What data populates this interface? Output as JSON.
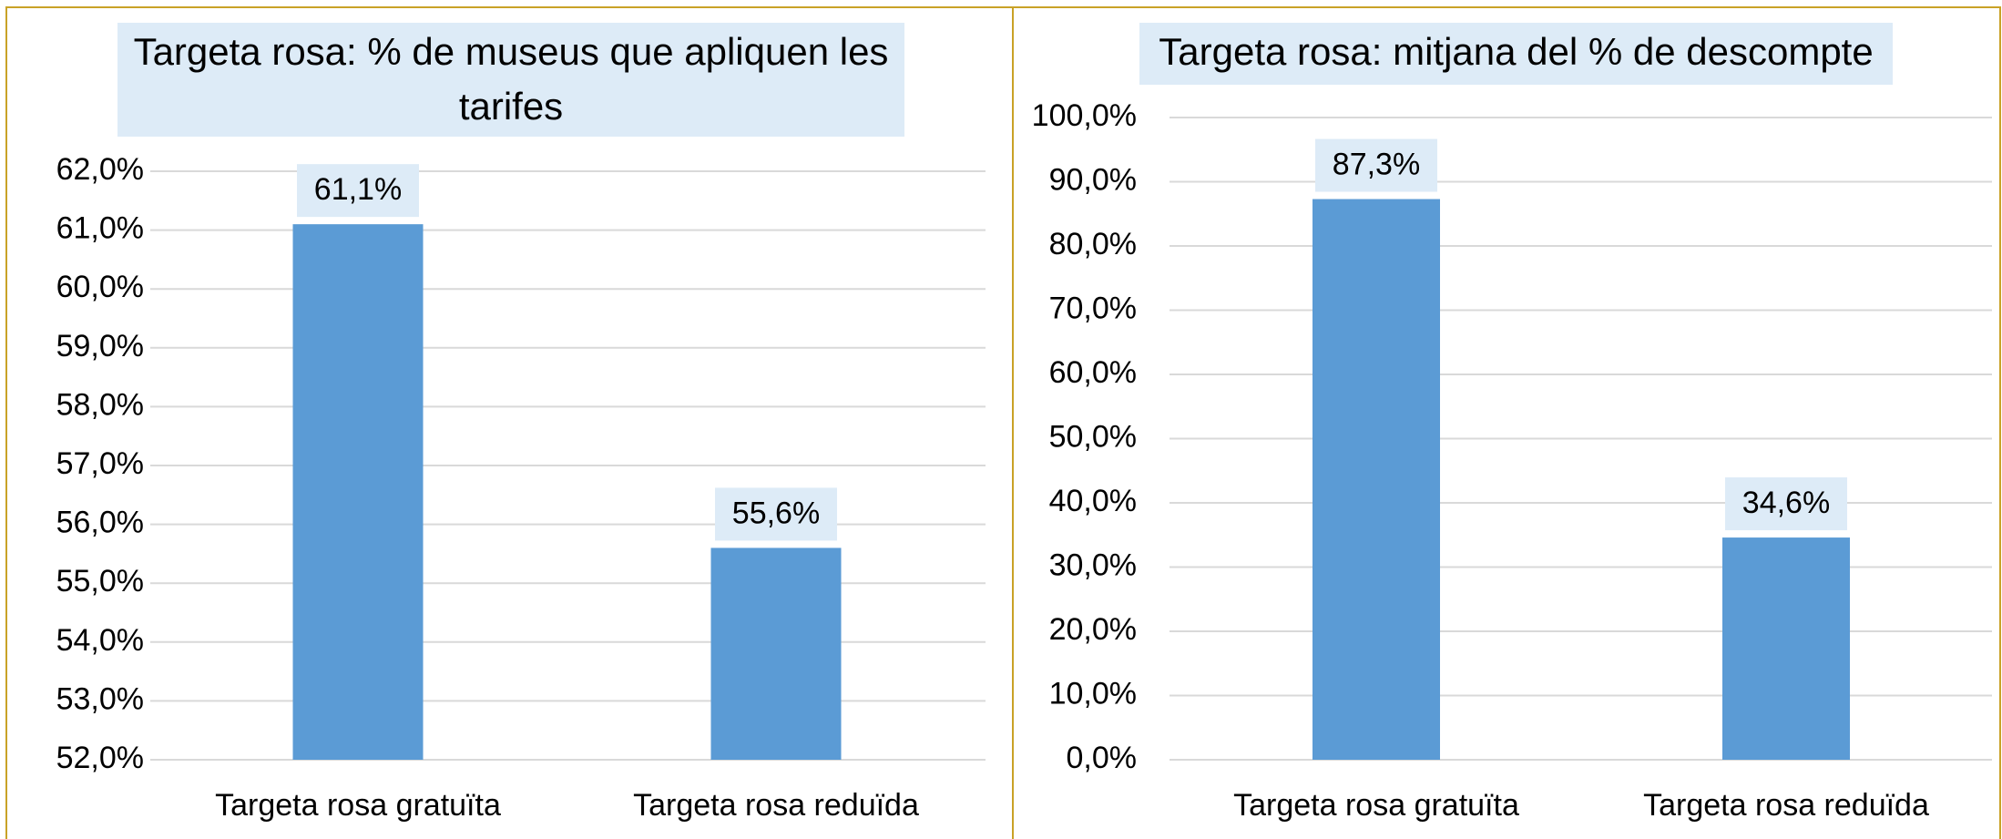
{
  "chart_data": [
    {
      "type": "bar",
      "title": "Targeta rosa: % de museus que apliquen les tarifes",
      "categories": [
        "Targeta rosa gratuïta",
        "Targeta rosa reduïda"
      ],
      "values": [
        61.1,
        55.6
      ],
      "value_labels": [
        "61,1%",
        "55,6%"
      ],
      "color": "#5b9bd5",
      "ylim": [
        52,
        62
      ],
      "yticks": [
        {
          "value": 52,
          "label": "52,0%"
        },
        {
          "value": 53,
          "label": "53,0%"
        },
        {
          "value": 54,
          "label": "54,0%"
        },
        {
          "value": 55,
          "label": "55,0%"
        },
        {
          "value": 56,
          "label": "56,0%"
        },
        {
          "value": 57,
          "label": "57,0%"
        },
        {
          "value": 58,
          "label": "58,0%"
        },
        {
          "value": 59,
          "label": "59,0%"
        },
        {
          "value": 60,
          "label": "60,0%"
        },
        {
          "value": 61,
          "label": "61,0%"
        },
        {
          "value": 62,
          "label": "62,0%"
        }
      ],
      "grid": true
    },
    {
      "type": "bar",
      "title": "Targeta rosa: mitjana del % de descompte",
      "categories": [
        "Targeta rosa gratuïta",
        "Targeta rosa reduïda"
      ],
      "values": [
        87.3,
        34.6
      ],
      "value_labels": [
        "87,3%",
        "34,6%"
      ],
      "color": "#5b9bd5",
      "ylim": [
        0,
        100
      ],
      "yticks": [
        {
          "value": 0,
          "label": "0,0%"
        },
        {
          "value": 10,
          "label": "10,0%"
        },
        {
          "value": 20,
          "label": "20,0%"
        },
        {
          "value": 30,
          "label": "30,0%"
        },
        {
          "value": 40,
          "label": "40,0%"
        },
        {
          "value": 50,
          "label": "50,0%"
        },
        {
          "value": 60,
          "label": "60,0%"
        },
        {
          "value": 70,
          "label": "70,0%"
        },
        {
          "value": 80,
          "label": "80,0%"
        },
        {
          "value": 90,
          "label": "90,0%"
        },
        {
          "value": 100,
          "label": "100,0%"
        }
      ],
      "grid": true
    }
  ]
}
